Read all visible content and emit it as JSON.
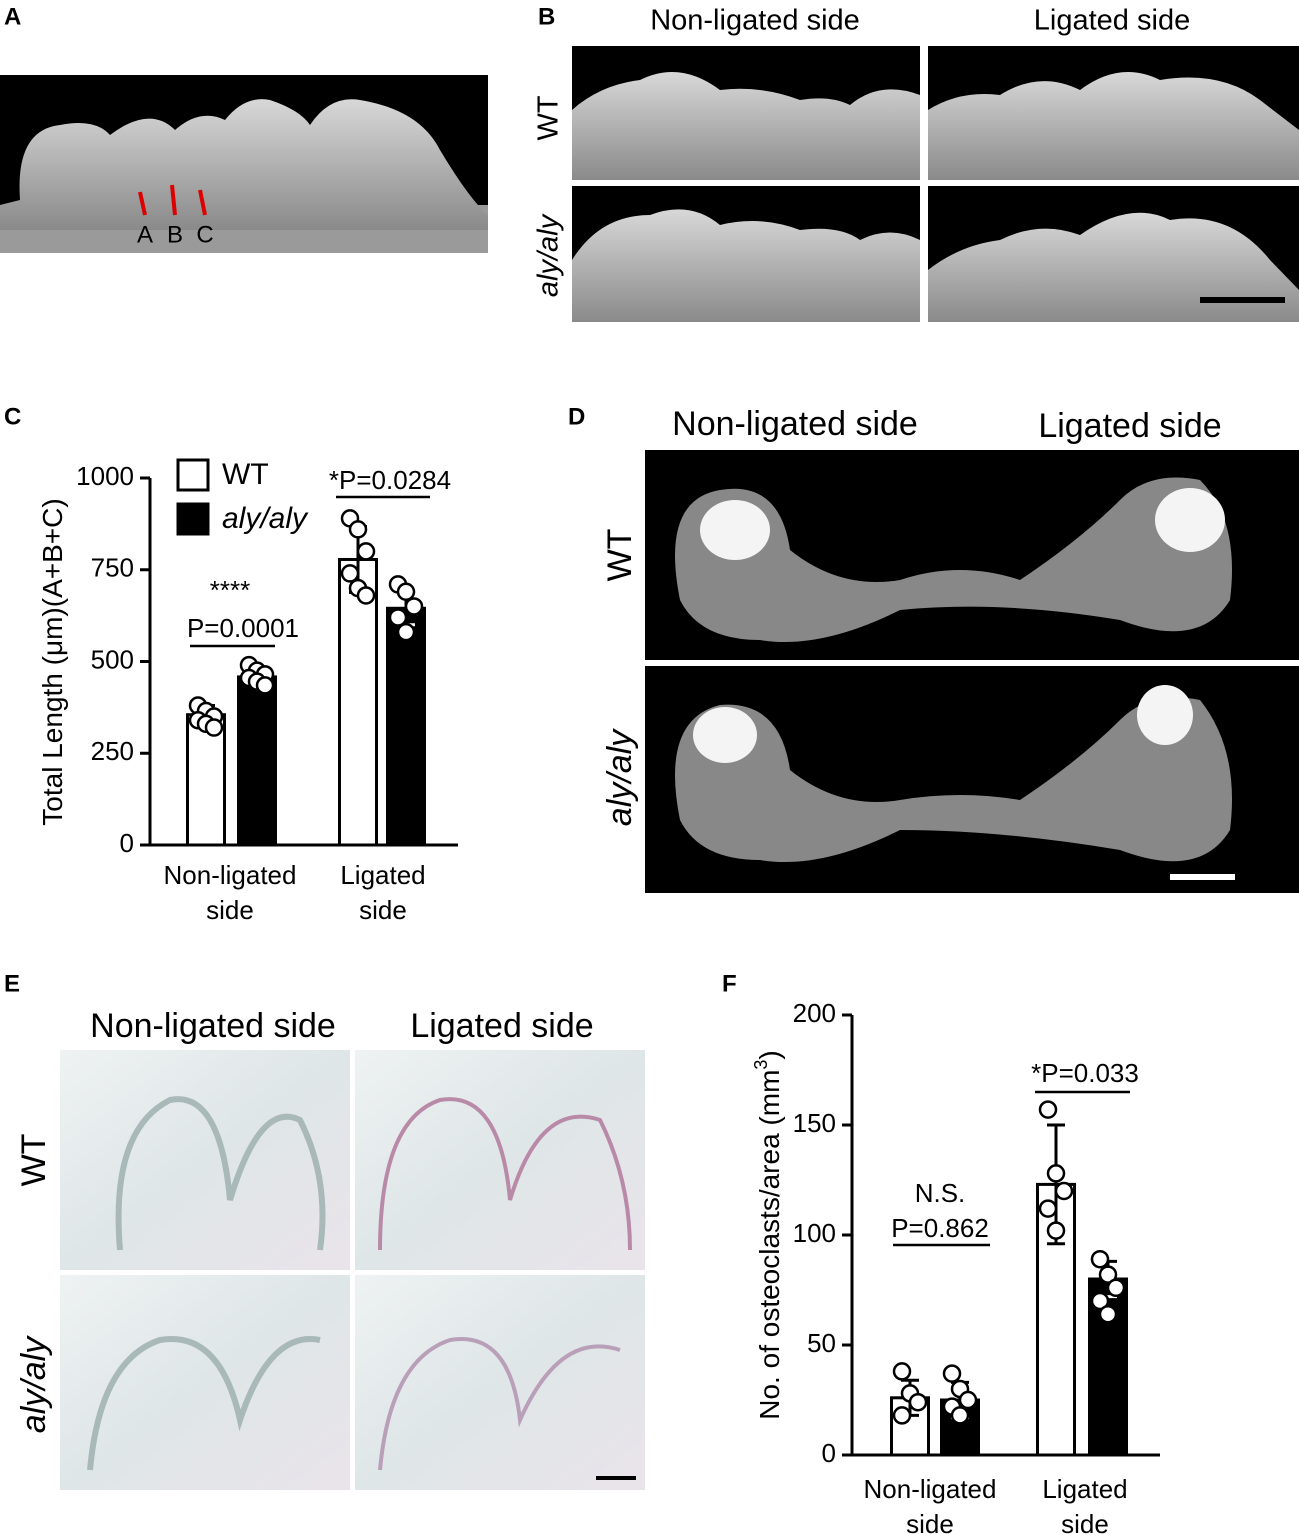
{
  "panels": {
    "A": {
      "label": "A",
      "markers": [
        "A",
        "B",
        "C"
      ]
    },
    "B": {
      "label": "B",
      "columns": [
        "Non-ligated side",
        "Ligated side"
      ],
      "rows": [
        "WT",
        "aly/aly"
      ]
    },
    "D": {
      "label": "D",
      "columns": [
        "Non-ligated side",
        "Ligated side"
      ],
      "rows": [
        "WT",
        "aly/aly"
      ]
    },
    "E": {
      "label": "E",
      "columns": [
        "Non-ligated side",
        "Ligated side"
      ],
      "rows": [
        "WT",
        "aly/aly"
      ]
    }
  },
  "chart_data": [
    {
      "type": "bar",
      "panel_label": "C",
      "ylabel": {
        "text": "Total Length (μm)(A+B+C)"
      },
      "categories": [
        "Non-ligated side",
        "Ligated side"
      ],
      "series": [
        {
          "name": "WT",
          "color": "#ffffff",
          "values": [
            355,
            778
          ],
          "errors": [
            25,
            90
          ],
          "points": [
            [
              380,
              365,
              350,
              340,
              330,
              320
            ],
            [
              890,
              860,
              800,
              740,
              700,
              680
            ]
          ]
        },
        {
          "name": "aly/aly",
          "color": "#000000",
          "values": [
            458,
            645
          ],
          "errors": [
            22,
            45
          ],
          "points": [
            [
              490,
              475,
              465,
              455,
              445,
              435
            ],
            [
              710,
              690,
              650,
              620,
              580
            ]
          ]
        }
      ],
      "ylim": [
        0,
        1000
      ],
      "yticks": [
        0,
        250,
        500,
        750,
        1000
      ],
      "legend": true,
      "annotations": [
        "****",
        "P=0.0001",
        "*P=0.0284"
      ]
    },
    {
      "type": "bar",
      "panel_label": "F",
      "ylabel": {
        "text": "No. of osteoclasts/area (mm",
        "superscript": "3",
        "suffix": ")"
      },
      "categories": [
        "Non-ligated side",
        "Ligated side"
      ],
      "series": [
        {
          "name": "WT",
          "color": "#ffffff",
          "values": [
            26,
            123
          ],
          "errors": [
            8,
            27
          ],
          "points": [
            [
              38,
              28,
              24,
              18
            ],
            [
              157,
              128,
              120,
              112,
              102
            ]
          ]
        },
        {
          "name": "aly/aly",
          "color": "#000000",
          "values": [
            25,
            80
          ],
          "errors": [
            8,
            8
          ],
          "points": [
            [
              37,
              30,
              25,
              22,
              18
            ],
            [
              89,
              82,
              76,
              70,
              64
            ]
          ]
        }
      ],
      "ylim": [
        0,
        200
      ],
      "yticks": [
        0,
        50,
        100,
        150,
        200
      ],
      "legend": false,
      "annotations": [
        "N.S.",
        "P=0.862",
        "*P=0.033"
      ]
    }
  ]
}
